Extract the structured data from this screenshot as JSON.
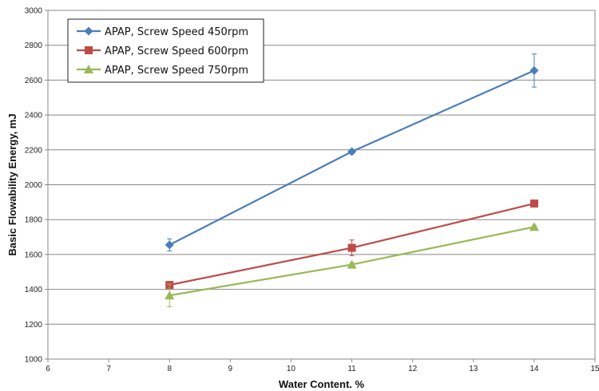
{
  "chart_data": {
    "type": "line",
    "xlabel": "Water Content. %",
    "ylabel": "Basic Flowability Energy, mJ",
    "xlim": [
      6,
      15
    ],
    "ylim": [
      1000,
      3000
    ],
    "xticks": [
      6,
      7,
      8,
      9,
      10,
      11,
      12,
      13,
      14,
      15
    ],
    "yticks": [
      1000,
      1200,
      1400,
      1600,
      1800,
      2000,
      2200,
      2400,
      2600,
      2800,
      3000
    ],
    "grid": "horizontal",
    "legend_position": "top-left",
    "series": [
      {
        "name": "APAP, Screw Speed 450rpm",
        "color": "#4a7ebb",
        "marker": "diamond",
        "x": [
          8,
          11,
          14
        ],
        "y": [
          1655,
          2190,
          2655
        ],
        "error": [
          35,
          12,
          95
        ]
      },
      {
        "name": "APAP, Screw Speed 600rpm",
        "color": "#be4b48",
        "marker": "square",
        "x": [
          8,
          11,
          14
        ],
        "y": [
          1425,
          1638,
          1892
        ],
        "error": [
          10,
          45,
          12
        ]
      },
      {
        "name": "APAP, Screw Speed 750rpm",
        "color": "#98b954",
        "marker": "triangle",
        "x": [
          8,
          11,
          14
        ],
        "y": [
          1365,
          1542,
          1758
        ],
        "error": [
          65,
          10,
          10
        ]
      }
    ]
  }
}
